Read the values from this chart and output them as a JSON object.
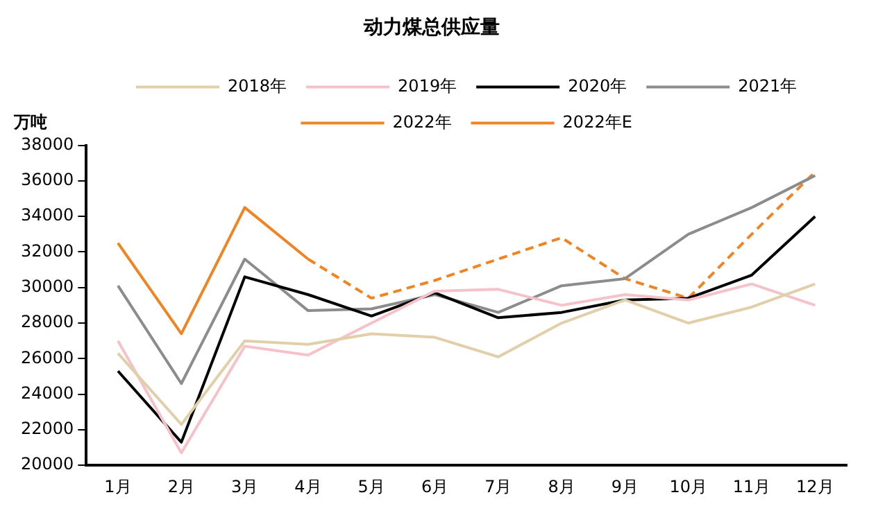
{
  "chart_data": {
    "type": "line",
    "title": "动力煤总供应量",
    "ylabel": "万吨",
    "categories": [
      "1月",
      "2月",
      "3月",
      "4月",
      "5月",
      "6月",
      "7月",
      "8月",
      "9月",
      "10月",
      "11月",
      "12月"
    ],
    "series": [
      {
        "name": "2018年",
        "color": "#e0cfa8",
        "values": [
          26300,
          22300,
          27000,
          26800,
          27400,
          27200,
          26100,
          28000,
          29300,
          28000,
          28900,
          30200
        ]
      },
      {
        "name": "2019年",
        "color": "#f4c2c8",
        "values": [
          27000,
          20700,
          26700,
          26200,
          28000,
          29800,
          29900,
          29000,
          29600,
          29300,
          30200,
          29000
        ]
      },
      {
        "name": "2020年",
        "color": "#000000",
        "values": [
          25300,
          21300,
          30600,
          29600,
          28400,
          29700,
          28300,
          28600,
          29300,
          29400,
          30700,
          34000
        ]
      },
      {
        "name": "2021年",
        "color": "#8c8c8c",
        "values": [
          30100,
          24600,
          31600,
          28700,
          28800,
          29600,
          28600,
          30100,
          30500,
          33000,
          34500,
          36300
        ]
      },
      {
        "name": "2022年",
        "color": "#f28322",
        "values": [
          32500,
          27400,
          34500,
          31600,
          null,
          null,
          null,
          null,
          null,
          null,
          null,
          null
        ]
      },
      {
        "name": "2022年E",
        "color": "#f28322",
        "line_style": "dashed",
        "values": [
          null,
          null,
          null,
          31600,
          29400,
          30400,
          31600,
          32800,
          30500,
          29400,
          33000,
          36500
        ]
      }
    ],
    "ylim": [
      20000,
      38000
    ],
    "yticks": [
      20000,
      22000,
      24000,
      26000,
      28000,
      30000,
      32000,
      34000,
      36000,
      38000
    ],
    "grid": false,
    "legend": "top",
    "marker": "none",
    "line_style": "solid"
  }
}
